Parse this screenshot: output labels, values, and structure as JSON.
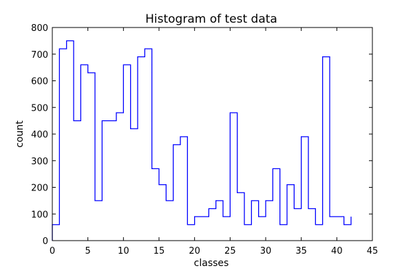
{
  "chart_data": {
    "type": "histogram",
    "title": "Histogram of test data",
    "xlabel": "classes",
    "ylabel": "count",
    "xlim": [
      0,
      45
    ],
    "ylim": [
      0,
      800
    ],
    "xticks": [
      0,
      5,
      10,
      15,
      20,
      25,
      30,
      35,
      40,
      45
    ],
    "yticks": [
      0,
      100,
      200,
      300,
      400,
      500,
      600,
      700,
      800
    ],
    "grid": false,
    "line_color": "#0000ff",
    "bin_edges": [
      0,
      1,
      2,
      3,
      4,
      5,
      6,
      7,
      8,
      9,
      10,
      11,
      12,
      13,
      14,
      15,
      16,
      17,
      18,
      19,
      20,
      21,
      22,
      23,
      24,
      25,
      26,
      27,
      28,
      29,
      30,
      31,
      32,
      33,
      34,
      35,
      36,
      37,
      38,
      39,
      40,
      41,
      42
    ],
    "counts": [
      60,
      720,
      750,
      450,
      660,
      630,
      150,
      450,
      450,
      480,
      660,
      420,
      690,
      720,
      270,
      210,
      150,
      360,
      390,
      60,
      90,
      90,
      120,
      150,
      90,
      480,
      180,
      60,
      150,
      90,
      150,
      270,
      60,
      210,
      120,
      390,
      120,
      60,
      690,
      90,
      90,
      60,
      90
    ]
  }
}
